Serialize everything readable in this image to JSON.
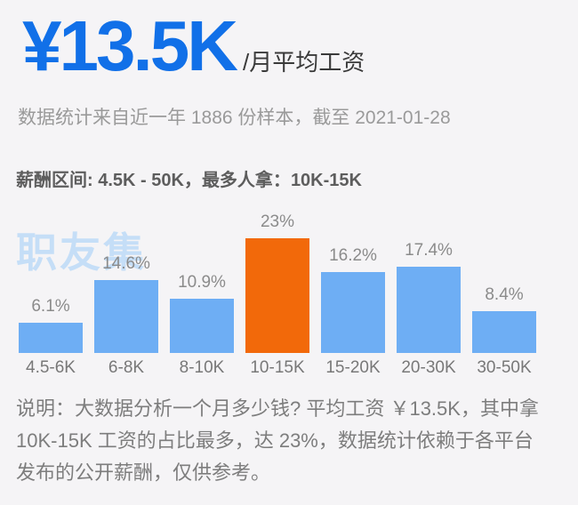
{
  "colors": {
    "accent_blue": "#1170e8",
    "bar_blue": "#6eaef4",
    "bar_highlight_orange": "#f2690a",
    "watermark_blue": "#c5def7"
  },
  "header": {
    "average_salary": "¥13.5K",
    "salary_suffix": "/月平均工资"
  },
  "stats_line": "数据统计来自近一年 1886 份样本，截至 2021-01-28",
  "range_line": {
    "range_label": "薪酬区间:",
    "range_value": " 4.5K - 50K，",
    "mode_label": "最多人拿：",
    "mode_value": "10K-15K"
  },
  "watermark": "职友集",
  "chart_data": {
    "type": "bar",
    "categories": [
      "4.5-6K",
      "6-8K",
      "8-10K",
      "10-15K",
      "15-20K",
      "20-30K",
      "30-50K"
    ],
    "values": [
      6.1,
      14.6,
      10.9,
      23,
      16.2,
      17.4,
      8.4
    ],
    "value_labels": [
      "6.1%",
      "14.6%",
      "10.9%",
      "23%",
      "16.2%",
      "17.4%",
      "8.4%"
    ],
    "unit": "%",
    "highlight_index": 3,
    "highlight_category": "10-15K",
    "title": "",
    "xlabel": "",
    "ylabel": "",
    "ylim": [
      0,
      25
    ],
    "grid": false,
    "legend": "none"
  },
  "description": {
    "lines": [
      "说明：大数据分析一个月多少钱? 平均工资 ￥13.5K，其中拿",
      "10K-15K 工资的占比最多，达 23%，数据统计依赖于各平台",
      "发布的公开薪酬，仅供参考。"
    ]
  }
}
